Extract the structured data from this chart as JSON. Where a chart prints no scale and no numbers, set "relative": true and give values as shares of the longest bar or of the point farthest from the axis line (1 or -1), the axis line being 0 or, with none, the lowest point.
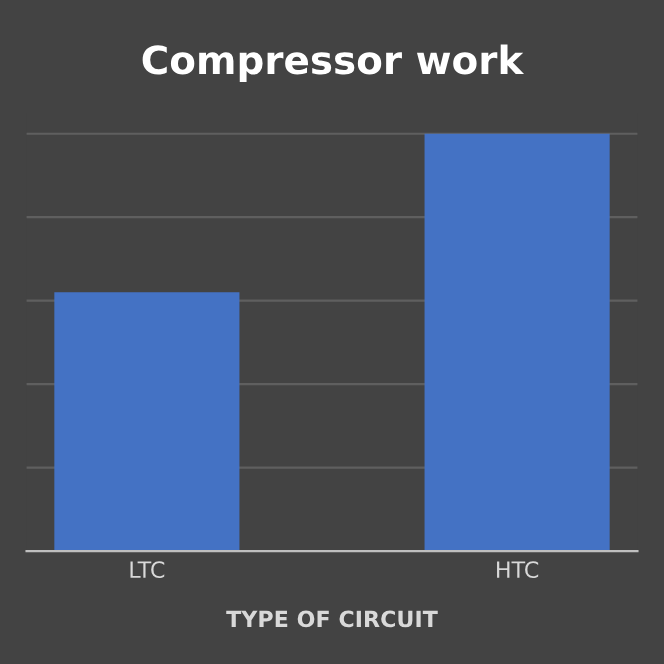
{
  "chart_data": {
    "type": "bar",
    "title": "Compressor work",
    "xlabel": "TYPE OF CIRCUIT",
    "categories": [
      "LTC",
      "HTC"
    ],
    "values": [
      0.62,
      1
    ],
    "color": "#4472c4",
    "relative": true,
    "grid": "y",
    "legend": false
  }
}
